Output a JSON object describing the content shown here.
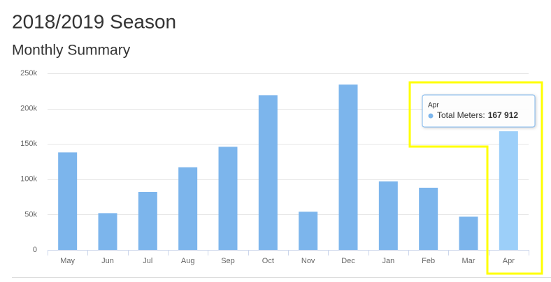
{
  "chart_data": {
    "type": "bar",
    "title": "2018/2019 Season",
    "subtitle": "Monthly Summary",
    "categories": [
      "May",
      "Jun",
      "Jul",
      "Aug",
      "Sep",
      "Oct",
      "Nov",
      "Dec",
      "Jan",
      "Feb",
      "Mar",
      "Apr"
    ],
    "series": [
      {
        "name": "Total Meters:",
        "color": "#7cb5ec",
        "values": [
          138000,
          52000,
          82000,
          117000,
          146000,
          219000,
          54000,
          234000,
          97000,
          88000,
          47000,
          167912
        ]
      }
    ],
    "ylim": [
      0,
      250000
    ],
    "yticks": [
      0,
      {
        "value": 50000,
        "label": "50k"
      },
      {
        "value": 100000,
        "label": "100k"
      },
      {
        "value": 150000,
        "label": "150k"
      },
      {
        "value": 200000,
        "label": "200k"
      },
      {
        "value": 250000,
        "label": "250k"
      }
    ],
    "grid": true,
    "highlight_index": 11,
    "highlight_color": "#9ccff9",
    "tooltip": {
      "title": "Apr",
      "value_label": "167 912"
    }
  }
}
